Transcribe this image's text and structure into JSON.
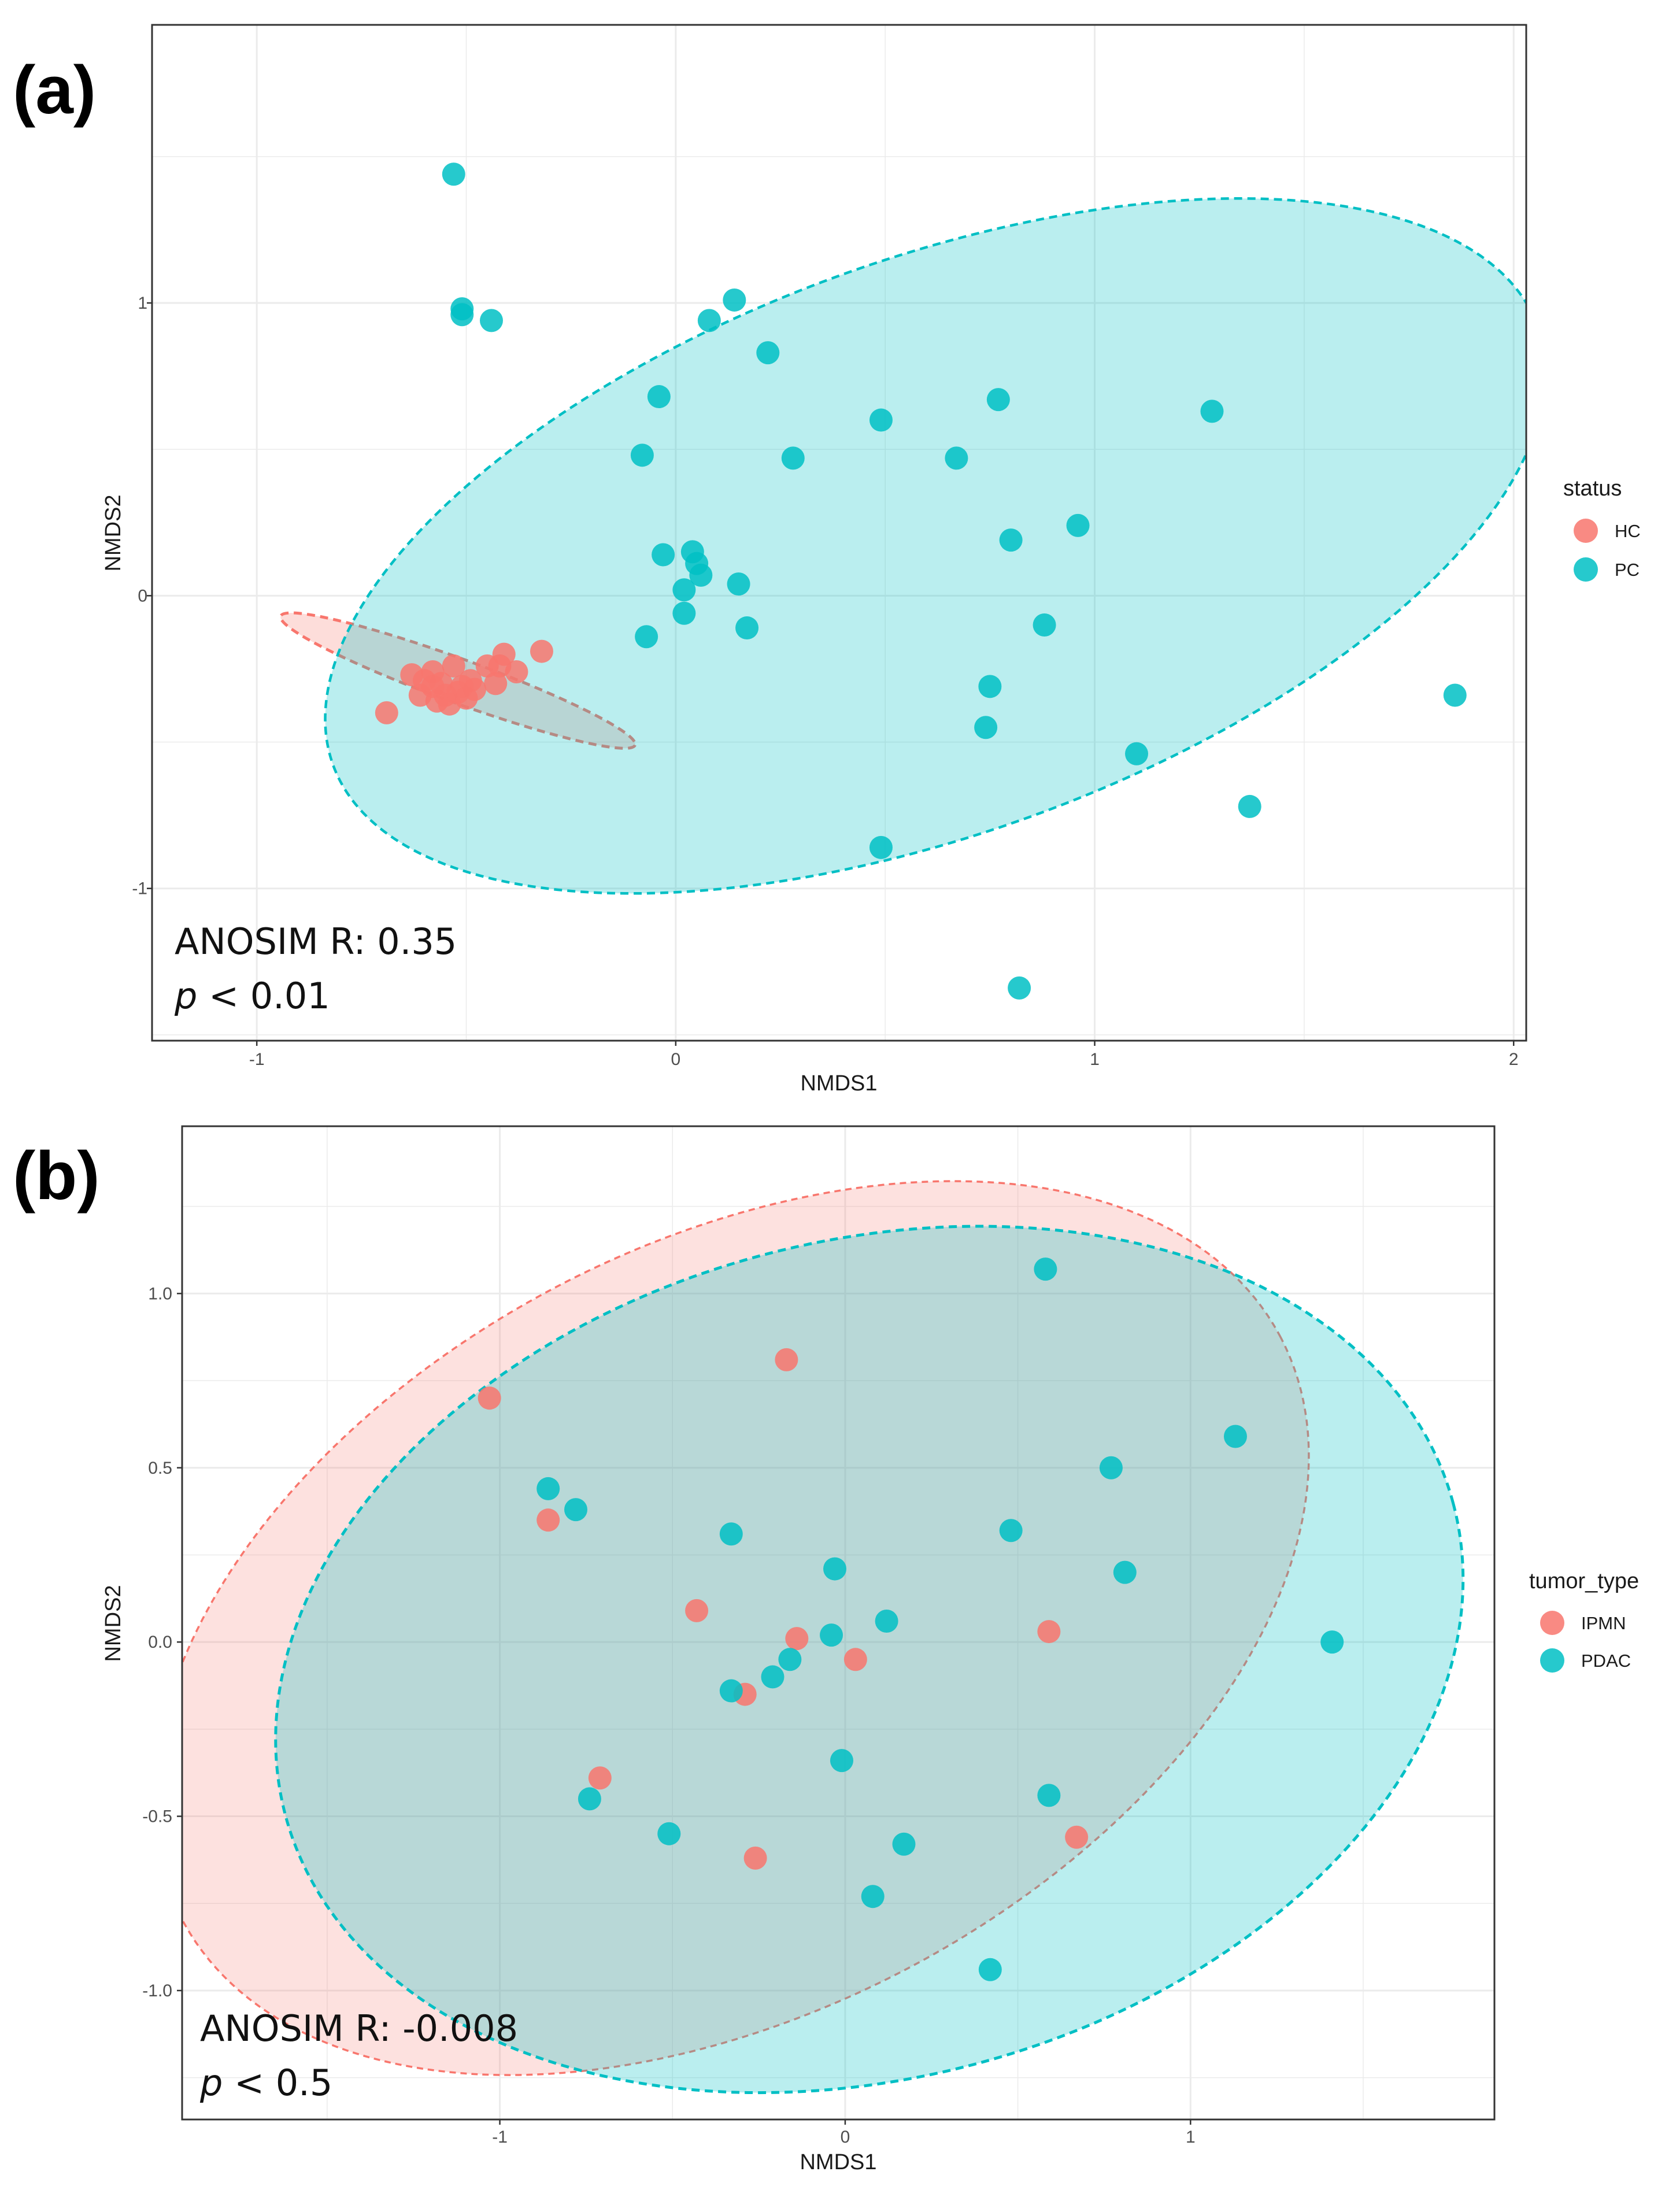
{
  "chart_data": [
    {
      "type": "scatter",
      "panel_label": "(a)",
      "xlabel": "NMDS1",
      "ylabel": "NMDS2",
      "xlim": [
        -1.25,
        2.03
      ],
      "ylim": [
        -1.52,
        1.95
      ],
      "x_ticks": [
        -1,
        0,
        1,
        2
      ],
      "x_tick_labels": [
        "-1",
        "0",
        "1",
        "2"
      ],
      "y_ticks": [
        -1,
        0,
        1
      ],
      "y_tick_labels": [
        "-1",
        "0",
        "1"
      ],
      "grid": true,
      "legend": {
        "title": "status",
        "position": "right"
      },
      "annotation": {
        "line1": "ANOSIM R: 0.35",
        "p_symbol": "p",
        "p_rest": " < 0.01"
      },
      "series": [
        {
          "name": "HC",
          "color": "#F8766D",
          "ellipse": {
            "cx": -0.52,
            "cy": -0.29,
            "rx": 0.45,
            "ry": 0.075,
            "angle_deg": 20
          },
          "points": [
            [
              -0.69,
              -0.4
            ],
            [
              -0.63,
              -0.27
            ],
            [
              -0.61,
              -0.34
            ],
            [
              -0.6,
              -0.29
            ],
            [
              -0.58,
              -0.26
            ],
            [
              -0.58,
              -0.31
            ],
            [
              -0.57,
              -0.36
            ],
            [
              -0.56,
              -0.3
            ],
            [
              -0.55,
              -0.34
            ],
            [
              -0.54,
              -0.37
            ],
            [
              -0.53,
              -0.24
            ],
            [
              -0.52,
              -0.33
            ],
            [
              -0.51,
              -0.31
            ],
            [
              -0.5,
              -0.35
            ],
            [
              -0.49,
              -0.29
            ],
            [
              -0.48,
              -0.32
            ],
            [
              -0.45,
              -0.24
            ],
            [
              -0.43,
              -0.3
            ],
            [
              -0.42,
              -0.24
            ],
            [
              -0.41,
              -0.2
            ],
            [
              -0.38,
              -0.26
            ],
            [
              -0.32,
              -0.19
            ]
          ]
        },
        {
          "name": "PC",
          "color": "#00BFC4",
          "ellipse": {
            "cx": 0.62,
            "cy": 0.17,
            "rx": 1.53,
            "ry": 0.98,
            "angle_deg": -20
          },
          "points": [
            [
              -0.53,
              1.44
            ],
            [
              -0.51,
              0.98
            ],
            [
              -0.51,
              0.96
            ],
            [
              -0.44,
              0.94
            ],
            [
              -0.04,
              0.68
            ],
            [
              -0.08,
              0.48
            ],
            [
              -0.03,
              0.14
            ],
            [
              0.04,
              0.15
            ],
            [
              0.05,
              0.11
            ],
            [
              0.06,
              0.07
            ],
            [
              0.02,
              0.02
            ],
            [
              0.02,
              -0.06
            ],
            [
              -0.07,
              -0.14
            ],
            [
              0.08,
              0.94
            ],
            [
              0.14,
              1.01
            ],
            [
              0.22,
              0.83
            ],
            [
              0.28,
              0.47
            ],
            [
              0.15,
              0.04
            ],
            [
              0.17,
              -0.11
            ],
            [
              0.49,
              0.6
            ],
            [
              0.67,
              0.47
            ],
            [
              0.77,
              0.67
            ],
            [
              0.8,
              0.19
            ],
            [
              0.96,
              0.24
            ],
            [
              0.88,
              -0.1
            ],
            [
              0.75,
              -0.31
            ],
            [
              0.74,
              -0.45
            ],
            [
              1.1,
              -0.54
            ],
            [
              1.28,
              0.63
            ],
            [
              1.37,
              -0.72
            ],
            [
              1.86,
              -0.34
            ],
            [
              0.49,
              -0.86
            ],
            [
              0.82,
              -1.34
            ]
          ]
        }
      ]
    },
    {
      "type": "scatter",
      "panel_label": "(b)",
      "xlabel": "NMDS1",
      "ylabel": "NMDS2",
      "xlim": [
        -1.92,
        1.88
      ],
      "ylim": [
        -1.37,
        1.48
      ],
      "x_ticks": [
        -1,
        0,
        1
      ],
      "x_tick_labels": [
        "-1",
        "0",
        "1"
      ],
      "y_ticks": [
        1.0,
        0.5,
        0.0,
        -0.5,
        -1.0
      ],
      "y_tick_labels": [
        "1.0",
        "0.5",
        "0.0",
        "-0.5",
        "-1.0"
      ],
      "grid": true,
      "legend": {
        "title": "tumor_type",
        "position": "right"
      },
      "annotation": {
        "line1": "ANOSIM R: -0.008",
        "p_symbol": "p",
        "p_rest": " < 0.5"
      },
      "series": [
        {
          "name": "IPMN",
          "color": "#F8766D",
          "ellipse": {
            "cx": -0.33,
            "cy": 0.04,
            "rx": 1.8,
            "ry": 1.1,
            "angle_deg": -28
          },
          "points": [
            [
              -1.03,
              0.7
            ],
            [
              -0.86,
              0.35
            ],
            [
              -0.43,
              0.09
            ],
            [
              -0.17,
              0.81
            ],
            [
              -0.14,
              0.01
            ],
            [
              -0.29,
              -0.15
            ],
            [
              0.03,
              -0.05
            ],
            [
              0.59,
              0.03
            ],
            [
              -0.71,
              -0.39
            ],
            [
              -0.26,
              -0.62
            ],
            [
              0.67,
              -0.56
            ]
          ]
        },
        {
          "name": "PDAC",
          "color": "#00BFC4",
          "ellipse": {
            "cx": 0.07,
            "cy": -0.05,
            "rx": 1.75,
            "ry": 1.2,
            "angle_deg": -15
          },
          "points": [
            [
              0.58,
              1.07
            ],
            [
              1.13,
              0.59
            ],
            [
              0.77,
              0.5
            ],
            [
              -0.86,
              0.44
            ],
            [
              -0.78,
              0.38
            ],
            [
              -0.33,
              0.31
            ],
            [
              0.48,
              0.32
            ],
            [
              -0.03,
              0.21
            ],
            [
              0.81,
              0.2
            ],
            [
              0.12,
              0.06
            ],
            [
              -0.04,
              0.02
            ],
            [
              -0.16,
              -0.05
            ],
            [
              -0.21,
              -0.1
            ],
            [
              -0.33,
              -0.14
            ],
            [
              1.41,
              0.0
            ],
            [
              -0.01,
              -0.34
            ],
            [
              -0.74,
              -0.45
            ],
            [
              0.59,
              -0.44
            ],
            [
              -0.51,
              -0.55
            ],
            [
              0.17,
              -0.58
            ],
            [
              0.08,
              -0.73
            ],
            [
              0.42,
              -0.94
            ]
          ]
        }
      ]
    }
  ]
}
